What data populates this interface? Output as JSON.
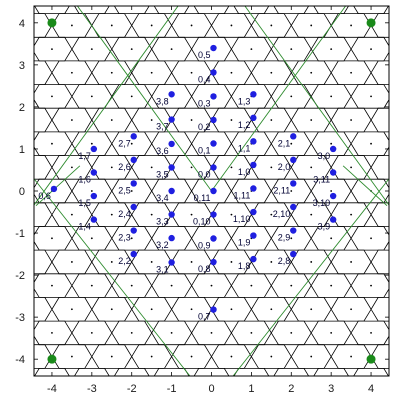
{
  "chart_data": {
    "type": "scatter",
    "title": "",
    "xlabel": "",
    "ylabel": "",
    "xlim": [
      -4.45,
      4.45
    ],
    "ylim": [
      -4.4,
      4.4
    ],
    "xticks": [
      -4,
      -3,
      -2,
      -1,
      0,
      1,
      2,
      3,
      4
    ],
    "yticks": [
      -4,
      -3,
      -2,
      -1,
      0,
      1,
      2,
      3,
      4
    ],
    "grid": false,
    "colors": {
      "points": "#1f1fe0",
      "corner_markers": "#1a8a1a",
      "lines": "#2e8b2e",
      "cells": "#000000"
    },
    "points": [
      {
        "label": "0,5",
        "x": 0.05,
        "y": 3.4
      },
      {
        "label": "0,4",
        "x": 0.05,
        "y": 2.82
      },
      {
        "label": "0,3",
        "x": 0.05,
        "y": 2.25
      },
      {
        "label": "0,2",
        "x": 0.05,
        "y": 1.69
      },
      {
        "label": "0,1",
        "x": 0.05,
        "y": 1.13
      },
      {
        "label": "0,0",
        "x": 0.05,
        "y": 0.56
      },
      {
        "label": "0,11",
        "x": 0.05,
        "y": 0.0
      },
      {
        "label": "0,10",
        "x": 0.05,
        "y": -0.56
      },
      {
        "label": "0,9",
        "x": 0.05,
        "y": -1.13
      },
      {
        "label": "0,8",
        "x": 0.05,
        "y": -1.69
      },
      {
        "label": "0,7",
        "x": 0.05,
        "y": -2.82
      },
      {
        "label": "3,8",
        "x": -1.0,
        "y": 2.3
      },
      {
        "label": "3,7",
        "x": -1.0,
        "y": 1.7
      },
      {
        "label": "3,6",
        "x": -1.0,
        "y": 1.12
      },
      {
        "label": "3,5",
        "x": -1.0,
        "y": 0.56
      },
      {
        "label": "3,4",
        "x": -1.0,
        "y": 0.0
      },
      {
        "label": "3,3",
        "x": -1.0,
        "y": -0.56
      },
      {
        "label": "3,2",
        "x": -1.0,
        "y": -1.12
      },
      {
        "label": "3,1",
        "x": -1.0,
        "y": -1.7
      },
      {
        "label": "2,7",
        "x": -1.95,
        "y": 1.3
      },
      {
        "label": "2,6",
        "x": -1.95,
        "y": 0.74
      },
      {
        "label": "2,5",
        "x": -1.95,
        "y": 0.18
      },
      {
        "label": "2,4",
        "x": -1.95,
        "y": -0.38
      },
      {
        "label": "2,3",
        "x": -1.95,
        "y": -0.94
      },
      {
        "label": "2,2",
        "x": -1.95,
        "y": -1.5
      },
      {
        "label": "1,7",
        "x": -2.95,
        "y": 1.0
      },
      {
        "label": "1,6",
        "x": -2.95,
        "y": 0.44
      },
      {
        "label": "1,5",
        "x": -2.95,
        "y": -0.12
      },
      {
        "label": "1,4",
        "x": -2.95,
        "y": -0.68
      },
      {
        "label": "0,6",
        "x": -3.95,
        "y": 0.05
      },
      {
        "label": "1,3",
        "x": 1.05,
        "y": 2.3
      },
      {
        "label": "1,2",
        "x": 1.05,
        "y": 1.74
      },
      {
        "label": "1,1",
        "x": 1.05,
        "y": 1.18
      },
      {
        "label": "1,0",
        "x": 1.05,
        "y": 0.62
      },
      {
        "label": "1,11",
        "x": 1.05,
        "y": 0.06
      },
      {
        "label": "1,10",
        "x": 1.05,
        "y": -0.5
      },
      {
        "label": "1,9",
        "x": 1.05,
        "y": -1.06
      },
      {
        "label": "1,8",
        "x": 1.05,
        "y": -1.62
      },
      {
        "label": "2,1",
        "x": 2.05,
        "y": 1.3
      },
      {
        "label": "2,0",
        "x": 2.05,
        "y": 0.74
      },
      {
        "label": "2,11",
        "x": 2.05,
        "y": 0.18
      },
      {
        "label": "2,10",
        "x": 2.05,
        "y": -0.38
      },
      {
        "label": "2,9",
        "x": 2.05,
        "y": -0.94
      },
      {
        "label": "2,8",
        "x": 2.05,
        "y": -1.5
      },
      {
        "label": "3,0",
        "x": 3.05,
        "y": 1.0
      },
      {
        "label": "3,11",
        "x": 3.05,
        "y": 0.44
      },
      {
        "label": "3,10",
        "x": 3.05,
        "y": -0.12
      },
      {
        "label": "3,9",
        "x": 3.05,
        "y": -0.68
      }
    ],
    "corner_markers": [
      {
        "x": -4.0,
        "y": 4.0
      },
      {
        "x": 4.0,
        "y": 4.0
      },
      {
        "x": -4.0,
        "y": -4.0
      },
      {
        "x": 4.0,
        "y": -4.0
      }
    ],
    "hex_centers_x": [
      -4.5,
      -3.5,
      -2.5,
      -1.5,
      -0.5,
      0.5,
      1.5,
      2.5,
      3.5,
      4.5
    ],
    "hex_centers_y_step": 0.5625,
    "boundary_lines": [
      {
        "x1": -0.8,
        "y1": 4.45,
        "x2": -4.5,
        "y2": -0.4
      },
      {
        "x1": 0.8,
        "y1": 4.45,
        "x2": 4.5,
        "y2": -0.4
      },
      {
        "x1": 0.0,
        "y1": 0.0,
        "x2": 3.4,
        "y2": 4.45
      },
      {
        "x1": 0.0,
        "y1": 0.0,
        "x2": -3.4,
        "y2": 4.45
      },
      {
        "x1": -4.5,
        "y1": 0.35,
        "x2": -0.5,
        "y2": -4.45
      },
      {
        "x1": 4.5,
        "y1": 0.35,
        "x2": 0.5,
        "y2": -4.45
      },
      {
        "x1": -4.4,
        "y1": -0.35,
        "x2": -3.3,
        "y2": 0.6
      },
      {
        "x1": 4.4,
        "y1": -0.35,
        "x2": 3.3,
        "y2": 0.6
      }
    ]
  }
}
